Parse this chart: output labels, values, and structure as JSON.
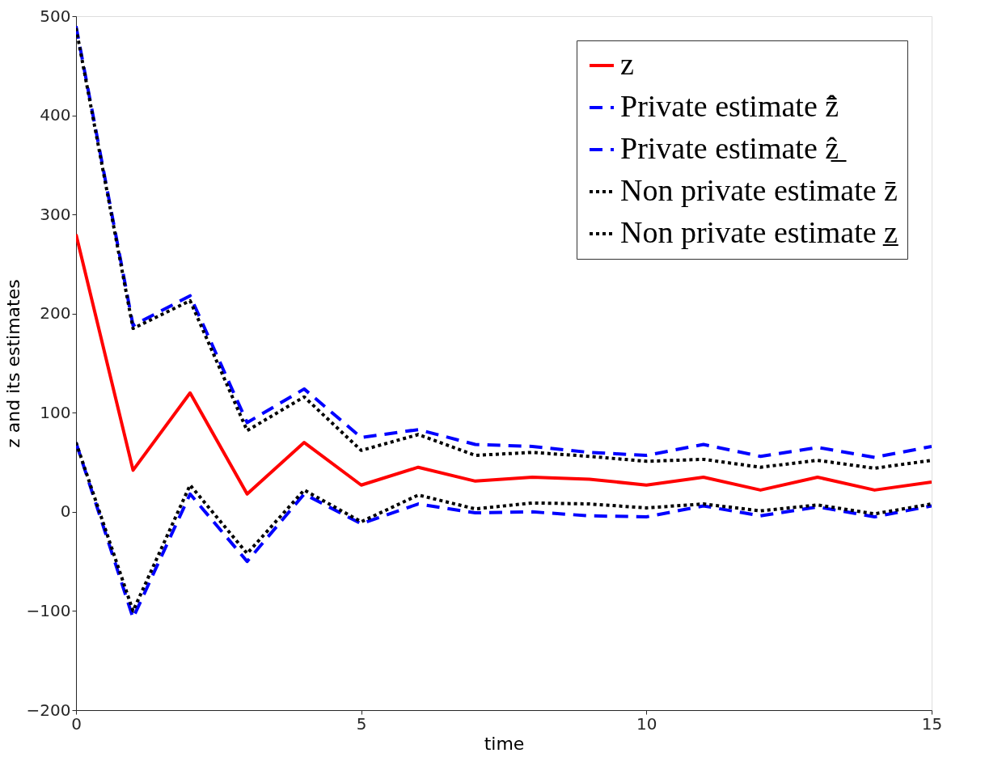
{
  "chart_data": {
    "type": "line",
    "xlabel": "time",
    "ylabel": "z and its estimates",
    "x": [
      0,
      1,
      2,
      3,
      4,
      5,
      6,
      7,
      8,
      9,
      10,
      11,
      12,
      13,
      14,
      15
    ],
    "xlim": [
      0,
      15
    ],
    "xticks": [
      0,
      5,
      10,
      15
    ],
    "ylim": [
      -200,
      500
    ],
    "yticks": [
      -200,
      -100,
      0,
      100,
      200,
      300,
      400,
      500
    ],
    "grid": false,
    "legend": "top right",
    "marker": "none",
    "series": [
      {
        "name": "z",
        "color": "#ff0000",
        "line_style": "solid",
        "values": [
          280,
          42,
          120,
          18,
          70,
          27,
          45,
          31,
          35,
          33,
          27,
          35,
          22,
          35,
          22,
          30
        ]
      },
      {
        "name": "Private estimate z̄̂",
        "color": "#0000ff",
        "line_style": "dashed",
        "values": [
          490,
          188,
          218,
          90,
          124,
          75,
          83,
          68,
          66,
          60,
          57,
          68,
          56,
          65,
          55,
          66
        ]
      },
      {
        "name": "Private estimate ẑ̲",
        "color": "#0000ff",
        "line_style": "dashed",
        "values": [
          70,
          -107,
          18,
          -50,
          18,
          -12,
          8,
          -1,
          0,
          -4,
          -5,
          6,
          -4,
          5,
          -5,
          6
        ]
      },
      {
        "name": "Non private estimate z̄",
        "color": "#000000",
        "line_style": "dotted",
        "values": [
          488,
          185,
          213,
          82,
          116,
          62,
          78,
          57,
          60,
          56,
          51,
          53,
          45,
          52,
          44,
          52
        ]
      },
      {
        "name": "Non private estimate z̲",
        "color": "#000000",
        "line_style": "dotted",
        "values": [
          70,
          -100,
          27,
          -42,
          22,
          -10,
          17,
          3,
          9,
          8,
          4,
          8,
          1,
          7,
          -2,
          8
        ]
      }
    ]
  }
}
